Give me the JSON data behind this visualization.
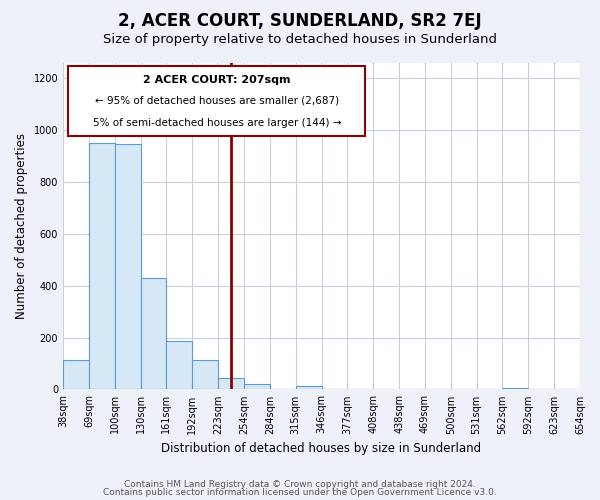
{
  "title": "2, ACER COURT, SUNDERLAND, SR2 7EJ",
  "subtitle": "Size of property relative to detached houses in Sunderland",
  "xlabel": "Distribution of detached houses by size in Sunderland",
  "ylabel": "Number of detached properties",
  "bin_labels": [
    "38sqm",
    "69sqm",
    "100sqm",
    "130sqm",
    "161sqm",
    "192sqm",
    "223sqm",
    "254sqm",
    "284sqm",
    "315sqm",
    "346sqm",
    "377sqm",
    "408sqm",
    "438sqm",
    "469sqm",
    "500sqm",
    "531sqm",
    "562sqm",
    "592sqm",
    "623sqm",
    "654sqm"
  ],
  "bar_heights": [
    115,
    950,
    945,
    430,
    185,
    115,
    45,
    20,
    0,
    15,
    0,
    0,
    0,
    0,
    0,
    0,
    0,
    7,
    0,
    0
  ],
  "bar_color": "#d6e8f5",
  "bar_edgecolor": "#5b9bd5",
  "vline_x": 6.5,
  "vline_color": "#8B0000",
  "annotation_title": "2 ACER COURT: 207sqm",
  "annotation_line1": "← 95% of detached houses are smaller (2,687)",
  "annotation_line2": "5% of semi-detached houses are larger (144) →",
  "annotation_box_color": "#8B0000",
  "ylim": [
    0,
    1260
  ],
  "yticks": [
    0,
    200,
    400,
    600,
    800,
    1000,
    1200
  ],
  "footer1": "Contains HM Land Registry data © Crown copyright and database right 2024.",
  "footer2": "Contains public sector information licensed under the Open Government Licence v3.0.",
  "bg_color": "#eef2f8",
  "plot_bg_color": "#ffffff",
  "grid_color": "#c8d0df",
  "title_fontsize": 12,
  "subtitle_fontsize": 9.5,
  "label_fontsize": 8.5,
  "tick_fontsize": 7,
  "footer_fontsize": 6.5
}
